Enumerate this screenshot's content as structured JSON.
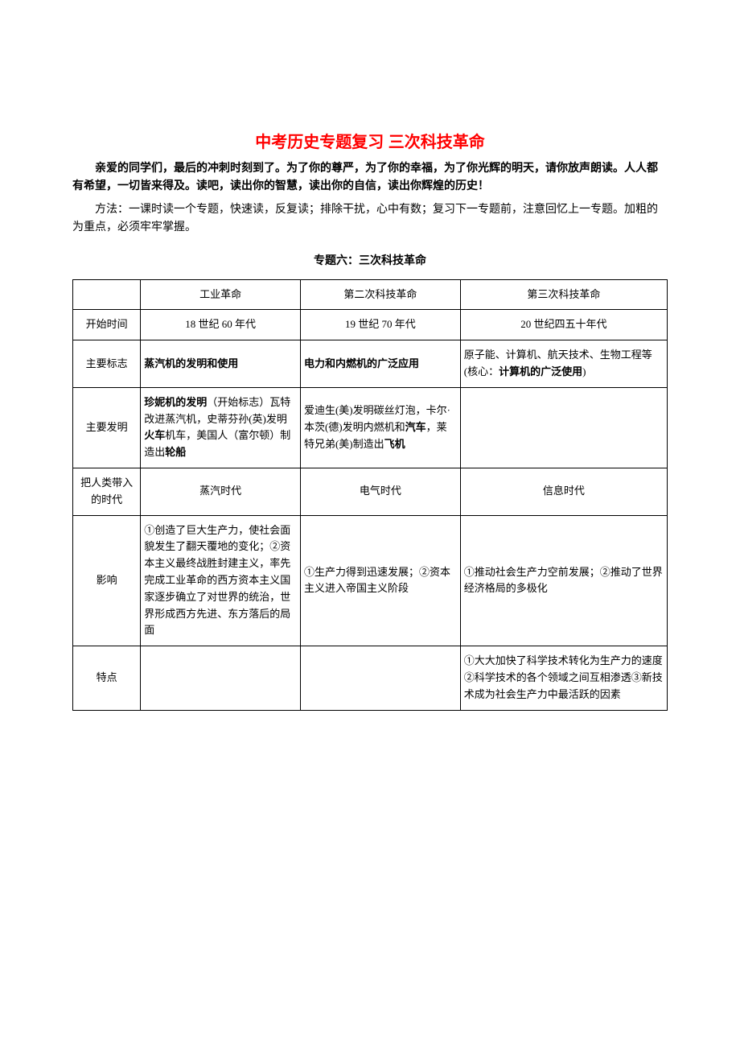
{
  "title": "中考历史专题复习 三次科技革命",
  "intro1": "亲爱的同学们，最后的冲刺时刻到了。为了你的尊严，为了你的幸福，为了你光辉的明天，请你放声朗读。人人都有希望，一切皆来得及。读吧，读出你的智慧，读出你的自信，读出你辉煌的历史！",
  "intro2": "方法：一课时读一个专题，快速读，反复读；排除干扰，心中有数；复习下一专题前，注意回忆上一专题。加粗的为重点，必须牢牢掌握。",
  "subtitle": "专题六：三次科技革命",
  "table": {
    "header": {
      "empty": "",
      "col1": "工业革命",
      "col2": "第二次科技革命",
      "col3": "第三次科技革命"
    },
    "rows": {
      "start_time": {
        "label": "开始时间",
        "col1": "18 世纪 60 年代",
        "col2": "19 世纪 70 年代",
        "col3": "20 世纪四五十年代"
      },
      "main_sign": {
        "label": "主要标志",
        "col1": "蒸汽机的发明和使用",
        "col2": "电力和内燃机的广泛应用",
        "col3_prefix": "原子能、计算机、航天技术、生物工程等(核心：",
        "col3_bold": "计算机的广泛使用",
        "col3_suffix": ")"
      },
      "main_invention": {
        "label": "主要发明",
        "col1_bold1": "珍妮机的发明",
        "col1_text1": "（开始标志）瓦特改进蒸汽机，史蒂芬孙(英)发明",
        "col1_bold2": "火车",
        "col1_text2": "机车，美国人（富尔顿）制造出",
        "col1_bold3": "轮船",
        "col2_text1": "爱迪生(美)发明碳丝灯泡，卡尔·本茨(德)发明内燃机和",
        "col2_bold1": "汽车",
        "col2_text2": "，莱特兄弟(美)制造出",
        "col2_bold2": "飞机",
        "col3": ""
      },
      "era": {
        "label": "把人类带入的时代",
        "col1": "蒸汽时代",
        "col2": "电气时代",
        "col3": "信息时代"
      },
      "impact": {
        "label": "影响",
        "col1": "①创造了巨大生产力，使社会面貌发生了翻天覆地的变化；②资本主义最终战胜封建主义，率先完成工业革命的西方资本主义国家逐步确立了对世界的统治，世界形成西方先进、东方落后的局面",
        "col2": "①生产力得到迅速发展；②资本主义进入帝国主义阶段",
        "col3": "①推动社会生产力空前发展；②推动了世界经济格局的多极化"
      },
      "feature": {
        "label": "特点",
        "col1": "",
        "col2": "",
        "col3": "①大大加快了科学技术转化为生产力的速度②科学技术的各个领域之间互相渗透③新技术成为社会生产力中最活跃的因素"
      }
    }
  }
}
